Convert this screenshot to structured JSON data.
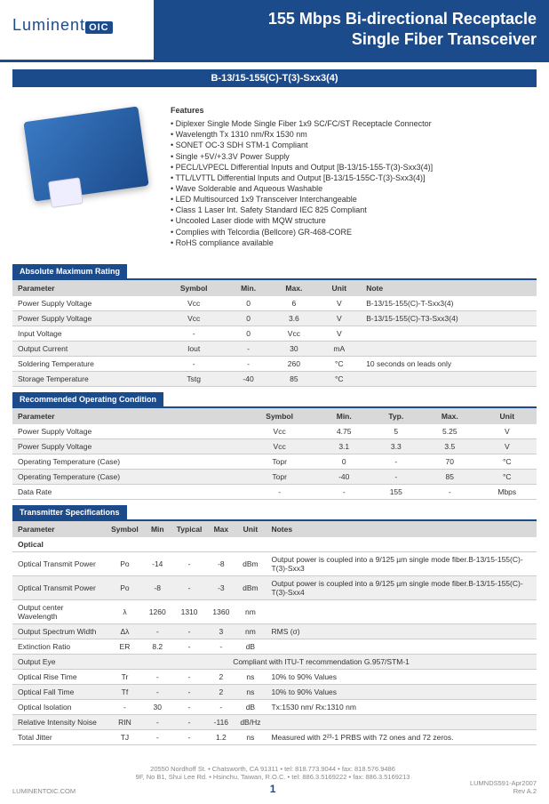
{
  "header": {
    "logo_text": "Luminent",
    "logo_suffix": "OIC",
    "title_line1": "155 Mbps Bi-directional Receptacle",
    "title_line2": "Single Fiber Transceiver",
    "model": "B-13/15-155(C)-T(3)-Sxx3(4)"
  },
  "features": {
    "heading": "Features",
    "items": [
      "Diplexer Single Mode Single Fiber 1x9 SC/FC/ST Receptacle Connector",
      "Wavelength Tx 1310 nm/Rx 1530 nm",
      "SONET OC-3 SDH STM-1 Compliant",
      "Single +5V/+3.3V Power Supply",
      "PECL/LVPECL Differential Inputs and Output [B-13/15-155-T(3)-Sxx3(4)]",
      "TTL/LVTTL Differential Inputs and Output [B-13/15-155C-T(3)-Sxx3(4)]",
      "Wave Solderable and Aqueous Washable",
      "LED Multisourced 1x9 Transceiver Interchangeable",
      "Class 1 Laser Int. Safety Standard IEC 825 Compliant",
      "Uncooled Laser diode with MQW structure",
      "Complies with Telcordia (Bellcore) GR-468-CORE",
      "RoHS compliance available"
    ]
  },
  "tables": {
    "amr": {
      "title": "Absolute Maximum Rating",
      "cols": [
        "Parameter",
        "Symbol",
        "Min.",
        "Max.",
        "Unit",
        "Note"
      ],
      "rows": [
        [
          "Power Supply Voltage",
          "Vcc",
          "0",
          "6",
          "V",
          "B-13/15-155(C)-T-Sxx3(4)"
        ],
        [
          "Power Supply Voltage",
          "Vcc",
          "0",
          "3.6",
          "V",
          "B-13/15-155(C)-T3-Sxx3(4)"
        ],
        [
          "Input Voltage",
          "-",
          "0",
          "Vcc",
          "V",
          ""
        ],
        [
          "Output Current",
          "Iout",
          "-",
          "30",
          "mA",
          ""
        ],
        [
          "Soldering Temperature",
          "-",
          "-",
          "260",
          "°C",
          "10 seconds on leads only"
        ],
        [
          "Storage Temperature",
          "Tstg",
          "-40",
          "85",
          "°C",
          ""
        ]
      ]
    },
    "roc": {
      "title": "Recommended Operating Condition",
      "cols": [
        "Parameter",
        "Symbol",
        "Min.",
        "Typ.",
        "Max.",
        "Unit"
      ],
      "rows": [
        [
          "Power Supply Voltage",
          "Vcc",
          "4.75",
          "5",
          "5.25",
          "V"
        ],
        [
          "Power Supply Voltage",
          "Vcc",
          "3.1",
          "3.3",
          "3.5",
          "V"
        ],
        [
          "Operating Temperature (Case)",
          "Topr",
          "0",
          "-",
          "70",
          "°C"
        ],
        [
          "Operating Temperature (Case)",
          "Topr",
          "-40",
          "-",
          "85",
          "°C"
        ],
        [
          "Data Rate",
          "-",
          "-",
          "155",
          "-",
          "Mbps"
        ]
      ]
    },
    "ts": {
      "title": "Transmitter Specifications",
      "cols": [
        "Parameter",
        "Symbol",
        "Min",
        "Typical",
        "Max",
        "Unit",
        "Notes"
      ],
      "subhead": "Optical",
      "rows": [
        [
          "Optical Transmit Power",
          "Po",
          "-14",
          "-",
          "-8",
          "dBm",
          "Output power is coupled into a 9/125 µm single mode fiber.B-13/15-155(C)-T(3)-Sxx3"
        ],
        [
          "Optical Transmit Power",
          "Po",
          "-8",
          "-",
          "-3",
          "dBm",
          "Output power is coupled into a 9/125 µm single mode fiber.B-13/15-155(C)-T(3)-Sxx4"
        ],
        [
          "Output center Wavelength",
          "λ",
          "1260",
          "1310",
          "1360",
          "nm",
          ""
        ],
        [
          "Output Spectrum Width",
          "Δλ",
          "-",
          "-",
          "3",
          "nm",
          "RMS (σ)"
        ],
        [
          "Extinction Ratio",
          "ER",
          "8.2",
          "-",
          "-",
          "dB",
          ""
        ],
        [
          "Output Eye",
          "",
          "",
          "",
          "",
          "",
          "Compliant with ITU-T recommendation G.957/STM-1"
        ],
        [
          "Optical Rise Time",
          "Tr",
          "-",
          "-",
          "2",
          "ns",
          "10% to 90% Values"
        ],
        [
          "Optical Fall Time",
          "Tf",
          "-",
          "-",
          "2",
          "ns",
          "10% to 90% Values"
        ],
        [
          "Optical Isolation",
          "-",
          "30",
          "-",
          "-",
          "dB",
          "Tx:1530 nm/ Rx:1310 nm"
        ],
        [
          "Relative Intensity Noise",
          "RIN",
          "-",
          "-",
          "-116",
          "dB/Hz",
          ""
        ],
        [
          "Total Jitter",
          "TJ",
          "-",
          "-",
          "1.2",
          "ns",
          "Measured with 2²³-1 PRBS with 72 ones and 72 zeros."
        ]
      ]
    }
  },
  "footer": {
    "left": "LUMINENTOIC.COM",
    "addr1": "20550 Nordhoff St. • Chatsworth, CA  91311 • tel: 818.773.9044 • fax: 818.576.9486",
    "addr2": "9F, No B1, Shui Lee Rd. • Hsinchu, Taiwan, R.O.C. • tel: 886.3.5169222 • fax: 886.3.5169213",
    "right1": "LUMNDS591-Apr2007",
    "right2": "Rev A.2",
    "page": "1"
  }
}
